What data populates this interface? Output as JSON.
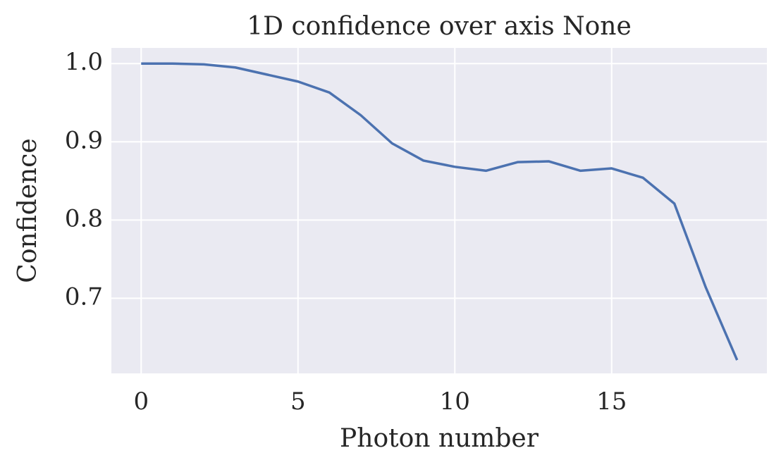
{
  "chart_data": {
    "type": "line",
    "title": "1D confidence over axis None",
    "x_label": "Photon number",
    "y_label": "Confidence",
    "x": [
      0,
      1,
      2,
      3,
      4,
      5,
      6,
      7,
      8,
      9,
      10,
      11,
      12,
      13,
      14,
      15,
      16,
      17,
      18,
      19
    ],
    "series": [
      {
        "name": "confidence",
        "color": "#4c72b0",
        "values": [
          1.0,
          1.0,
          0.999,
          0.995,
          0.986,
          0.977,
          0.963,
          0.934,
          0.898,
          0.876,
          0.868,
          0.863,
          0.874,
          0.875,
          0.863,
          0.866,
          0.854,
          0.821,
          0.714,
          0.621
        ]
      }
    ],
    "xlim": [
      -0.95,
      19.95
    ],
    "ylim": [
      0.604,
      1.02
    ],
    "xticks": [
      0,
      5,
      10,
      15
    ],
    "yticks": [
      {
        "value": 1,
        "label": "1.0"
      },
      0.9,
      0.8,
      0.7
    ],
    "grid": true
  }
}
